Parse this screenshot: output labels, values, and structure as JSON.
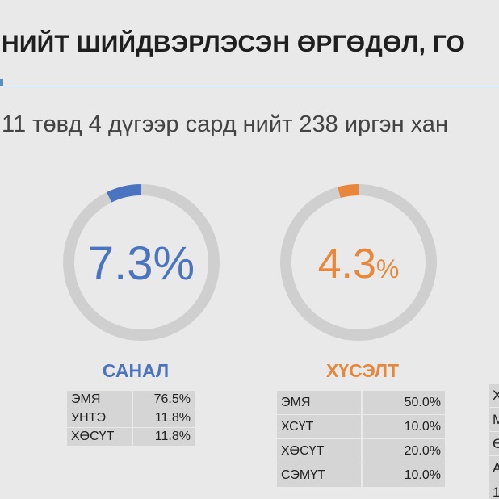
{
  "header": {
    "title": "НИЙТ ШИЙДВЭРЛЭСЭН ӨРГӨДӨЛ, ГО",
    "subtitle": "11 төвд 4 дүгээр сард нийт 238 иргэн хан"
  },
  "colors": {
    "track": "#cfcfcf",
    "blue": "#4a74bf",
    "orange": "#e8873a",
    "blue_text": "#4a74bf",
    "orange_text": "#e8873a"
  },
  "chart_data": [
    {
      "type": "pie",
      "style": "donut",
      "value_percent": 7.3,
      "center_number": "7.3",
      "center_unit": "%",
      "label": "САНАЛ",
      "color": "#4a74bf",
      "table": [
        {
          "name": "ЭМЯ",
          "value": "76.5%"
        },
        {
          "name": "УНТЭ",
          "value": "11.8%"
        },
        {
          "name": "ХӨСҮТ",
          "value": "11.8%"
        }
      ]
    },
    {
      "type": "pie",
      "style": "donut",
      "value_percent": 4.3,
      "center_number": "4.3",
      "center_unit": "%",
      "label": "ХҮСЭЛТ",
      "color": "#e8873a",
      "table": [
        {
          "name": "ЭМЯ",
          "value": "50.0%"
        },
        {
          "name": "ХСҮТ",
          "value": "10.0%"
        },
        {
          "name": "ХӨСҮТ",
          "value": "20.0%"
        },
        {
          "name": "СЭМҮТ",
          "value": "10.0%"
        }
      ]
    }
  ],
  "partial_table": {
    "first_letters": [
      "Х",
      "М",
      "Ө",
      "А",
      "1"
    ]
  }
}
